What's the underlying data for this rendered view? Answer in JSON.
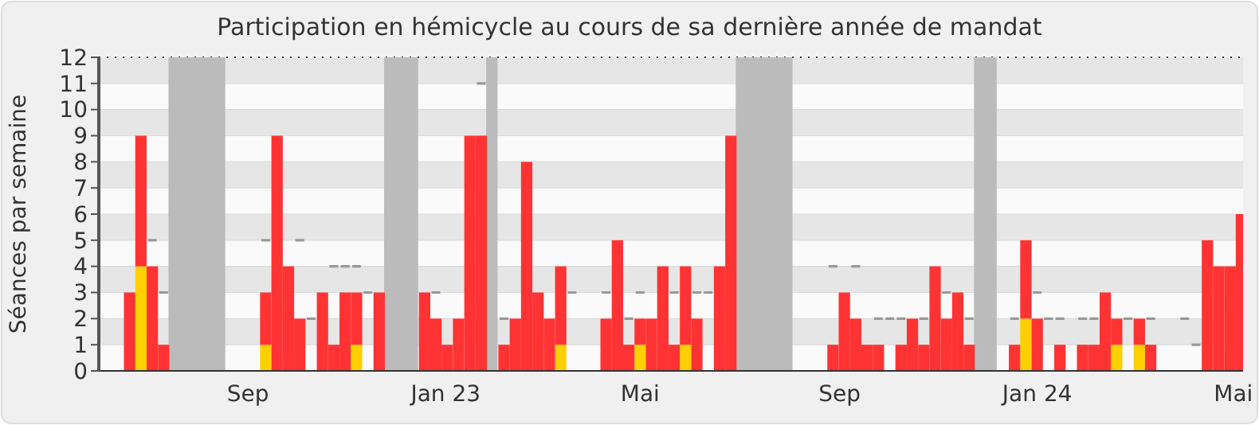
{
  "chart_data": {
    "type": "bar",
    "title": "Participation en hémicycle au cours de sa dernière année de mandat",
    "ylabel": "Séances par semaine",
    "x": [
      "2022-06-20",
      "2022-06-27",
      "2022-07-04",
      "2022-07-11",
      "2022-07-18",
      "2022-07-25",
      "2022-08-01",
      "2022-08-08",
      "2022-08-15",
      "2022-08-22",
      "2022-08-29",
      "2022-09-05",
      "2022-09-12",
      "2022-09-19",
      "2022-09-26",
      "2022-10-03",
      "2022-10-10",
      "2022-10-17",
      "2022-10-24",
      "2022-10-31",
      "2022-11-07",
      "2022-11-14",
      "2022-11-21",
      "2022-11-28",
      "2022-12-05",
      "2022-12-12",
      "2022-12-19",
      "2022-12-26",
      "2023-01-02",
      "2023-01-09",
      "2023-01-16",
      "2023-01-23",
      "2023-01-30",
      "2023-02-06",
      "2023-02-13",
      "2023-02-20",
      "2023-02-27",
      "2023-03-06",
      "2023-03-13",
      "2023-03-20",
      "2023-03-27",
      "2023-04-03",
      "2023-04-10",
      "2023-04-17",
      "2023-04-24",
      "2023-05-01",
      "2023-05-08",
      "2023-05-15",
      "2023-05-22",
      "2023-05-29",
      "2023-06-05",
      "2023-06-12",
      "2023-06-19",
      "2023-06-26",
      "2023-07-03",
      "2023-07-10",
      "2023-07-17",
      "2023-07-24",
      "2023-07-31",
      "2023-08-07",
      "2023-08-14",
      "2023-08-21",
      "2023-08-28",
      "2023-09-04",
      "2023-09-11",
      "2023-09-18",
      "2023-09-25",
      "2023-10-02",
      "2023-10-09",
      "2023-10-16",
      "2023-10-23",
      "2023-10-30",
      "2023-11-06",
      "2023-11-13",
      "2023-11-20",
      "2023-11-27",
      "2023-12-04",
      "2023-12-11",
      "2023-12-18",
      "2023-12-25",
      "2024-01-01",
      "2024-01-08",
      "2024-01-15",
      "2024-01-22",
      "2024-01-29",
      "2024-02-05",
      "2024-02-12",
      "2024-02-19",
      "2024-02-26",
      "2024-03-04",
      "2024-03-11",
      "2024-03-18",
      "2024-03-25",
      "2024-04-01",
      "2024-04-08",
      "2024-04-15",
      "2024-04-22",
      "2024-04-29",
      "2024-05-06"
    ],
    "stacked": true,
    "series": [
      {
        "color": "#ffd000",
        "values": [
          null,
          4,
          null,
          null,
          null,
          null,
          null,
          null,
          null,
          null,
          null,
          null,
          1,
          null,
          null,
          null,
          null,
          null,
          null,
          null,
          1,
          null,
          null,
          null,
          null,
          null,
          null,
          null,
          null,
          null,
          null,
          null,
          null,
          null,
          null,
          null,
          null,
          null,
          1,
          null,
          null,
          null,
          null,
          null,
          null,
          1,
          null,
          null,
          null,
          1,
          null,
          null,
          null,
          null,
          null,
          null,
          null,
          null,
          null,
          null,
          null,
          null,
          null,
          null,
          null,
          null,
          null,
          null,
          null,
          null,
          null,
          null,
          null,
          null,
          null,
          null,
          null,
          null,
          null,
          2,
          null,
          null,
          null,
          null,
          null,
          null,
          null,
          1,
          null,
          1,
          null,
          null,
          null,
          null,
          null,
          null,
          null,
          null,
          null
        ]
      },
      {
        "color": "#ff3333",
        "values": [
          3,
          5,
          4,
          1,
          null,
          null,
          null,
          null,
          null,
          null,
          null,
          null,
          2,
          9,
          4,
          2,
          null,
          3,
          1,
          3,
          2,
          null,
          3,
          null,
          null,
          null,
          3,
          2,
          1,
          2,
          9,
          9,
          null,
          1,
          2,
          8,
          3,
          2,
          3,
          null,
          null,
          null,
          2,
          5,
          1,
          1,
          2,
          4,
          1,
          3,
          2,
          null,
          4,
          9,
          null,
          null,
          null,
          null,
          null,
          null,
          null,
          null,
          1,
          3,
          2,
          1,
          1,
          null,
          1,
          2,
          1,
          4,
          2,
          3,
          1,
          null,
          null,
          null,
          1,
          3,
          2,
          null,
          1,
          null,
          1,
          1,
          3,
          1,
          null,
          1,
          1,
          null,
          null,
          null,
          null,
          5,
          4,
          4,
          6
        ]
      },
      {
        "type": "step",
        "color": "#999999",
        "values": [
          null,
          null,
          5,
          3,
          null,
          null,
          null,
          null,
          null,
          null,
          null,
          null,
          5,
          null,
          null,
          5,
          2,
          null,
          4,
          4,
          4,
          3,
          null,
          null,
          null,
          null,
          null,
          3,
          null,
          null,
          null,
          11,
          null,
          2,
          null,
          null,
          null,
          null,
          null,
          3,
          null,
          null,
          3,
          null,
          2,
          3,
          null,
          null,
          3,
          null,
          3,
          3,
          null,
          null,
          null,
          null,
          null,
          null,
          null,
          null,
          null,
          null,
          4,
          null,
          4,
          null,
          2,
          2,
          2,
          null,
          2,
          null,
          3,
          null,
          2,
          null,
          null,
          null,
          2,
          null,
          3,
          2,
          2,
          null,
          2,
          2,
          null,
          null,
          2,
          null,
          2,
          null,
          null,
          2,
          1,
          null,
          null,
          null,
          null
        ]
      }
    ],
    "bands": [
      {
        "axis": "x",
        "from": "2022-07-14",
        "to": "2022-08-18",
        "color": "#bbbbbb"
      },
      {
        "axis": "x",
        "from": "2022-11-24",
        "to": "2022-12-15",
        "color": "#bbbbbb"
      },
      {
        "axis": "x",
        "from": "2023-01-26",
        "to": "2023-02-02",
        "color": "#bbbbbb"
      },
      {
        "axis": "x",
        "from": "2023-06-29",
        "to": "2023-08-03",
        "color": "#bbbbbb"
      },
      {
        "axis": "x",
        "from": "2023-11-23",
        "to": "2023-12-07",
        "color": "#bbbbbb"
      }
    ],
    "xlim": [
      "2022-06-01",
      "2024-05-07"
    ],
    "xticks": [
      {
        "value": "2022-09-01",
        "label": "Sep"
      },
      {
        "value": "2023-01-01",
        "label": "Jan 23"
      },
      {
        "value": "2023-05-01",
        "label": "Mai"
      },
      {
        "value": "2023-09-01",
        "label": "Sep"
      },
      {
        "value": "2024-01-01",
        "label": "Jan 24"
      },
      {
        "value": "2024-05-01",
        "label": "Mai"
      }
    ],
    "ylim": [
      0,
      12
    ],
    "yticks": [
      0,
      1,
      2,
      3,
      4,
      5,
      6,
      7,
      8,
      9,
      10,
      11,
      12
    ],
    "grid": "y"
  }
}
